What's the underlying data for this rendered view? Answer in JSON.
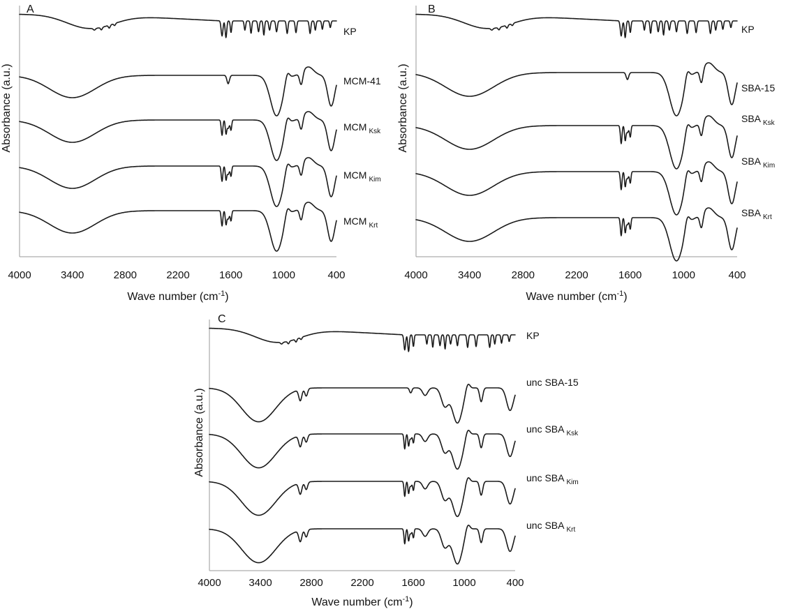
{
  "chart_data": [
    {
      "panel": "A",
      "type": "line",
      "xlabel": "Wave number (cm",
      "xlabel_sup": "-1",
      "xlabel_end": ")",
      "ylabel": "Absorbance (a.u.)",
      "xlim": [
        4000,
        400
      ],
      "xticks": [
        4000,
        3400,
        2800,
        2200,
        1600,
        1000,
        400
      ],
      "series": [
        {
          "label": "KP",
          "sub": "",
          "profile": "KP"
        },
        {
          "label": "MCM-41",
          "sub": "",
          "profile": "MCM"
        },
        {
          "label": "MCM",
          "sub": "Ksk",
          "profile": "MCM_drug"
        },
        {
          "label": "MCM",
          "sub": "Kim",
          "profile": "MCM_drug"
        },
        {
          "label": "MCM",
          "sub": "Krt",
          "profile": "MCM_drug"
        }
      ]
    },
    {
      "panel": "B",
      "type": "line",
      "xlabel": "Wave number (cm",
      "xlabel_sup": "-1",
      "xlabel_end": ")",
      "ylabel": "Absorbance (a.u.)",
      "xlim": [
        4000,
        400
      ],
      "xticks": [
        4000,
        3400,
        2800,
        2200,
        1600,
        1000,
        400
      ],
      "series": [
        {
          "label": "KP",
          "sub": "",
          "profile": "KP"
        },
        {
          "label": "SBA-15",
          "sub": "",
          "profile": "SBA"
        },
        {
          "label": "SBA",
          "sub": "Ksk",
          "profile": "SBA_drug"
        },
        {
          "label": "SBA",
          "sub": "Kim",
          "profile": "SBA_drug"
        },
        {
          "label": "SBA",
          "sub": "Krt",
          "profile": "SBA_drug"
        }
      ]
    },
    {
      "panel": "C",
      "type": "line",
      "xlabel": "Wave number (cm",
      "xlabel_sup": "-1",
      "xlabel_end": ")",
      "ylabel": "Absorbance (a.u.)",
      "xlim": [
        4000,
        400
      ],
      "xticks": [
        4000,
        3400,
        2800,
        2200,
        1600,
        1000,
        400
      ],
      "series": [
        {
          "label": "KP",
          "sub": "",
          "profile": "KP"
        },
        {
          "label": "unc SBA-15",
          "sub": "",
          "profile": "UNC"
        },
        {
          "label": "unc SBA",
          "sub": "Ksk",
          "profile": "UNC_drug"
        },
        {
          "label": "unc SBA",
          "sub": "Kim",
          "profile": "UNC_drug"
        },
        {
          "label": "unc SBA",
          "sub": "Krt",
          "profile": "UNC_drug"
        }
      ]
    }
  ]
}
